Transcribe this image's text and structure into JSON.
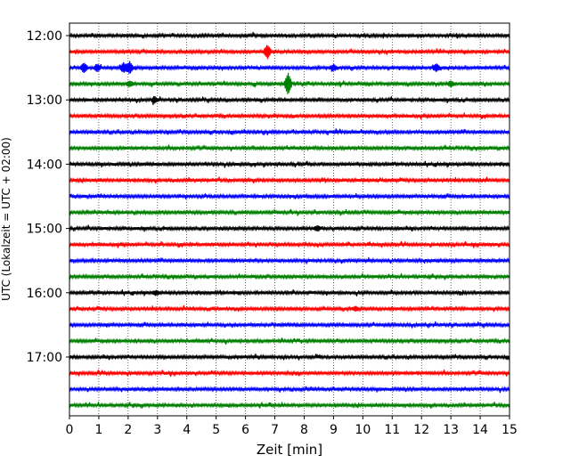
{
  "chart_data": {
    "type": "line",
    "title": "",
    "xlabel": "Zeit  [min]",
    "ylabel": "UTC (Lokalzeit = UTC + 02:00)",
    "xlim": [
      0,
      15
    ],
    "x_ticks": [
      "0",
      "1",
      "2",
      "3",
      "4",
      "5",
      "6",
      "7",
      "8",
      "9",
      "10",
      "11",
      "12",
      "13",
      "14",
      "15"
    ],
    "y_ticks": [
      "12:00",
      "13:00",
      "14:00",
      "15:00",
      "16:00",
      "17:00"
    ],
    "grid": "vertical dotted",
    "trace_colors": [
      "#000000",
      "#ff0000",
      "#0000ff",
      "#008000"
    ],
    "traces_start": "12:00",
    "trace_interval_min": 15,
    "trace_count": 24,
    "events": [
      {
        "trace": 1,
        "x": 6.75,
        "amp": 1.0
      },
      {
        "trace": 2,
        "x": 0.5,
        "amp": 0.7
      },
      {
        "trace": 2,
        "x": 0.95,
        "amp": 0.5
      },
      {
        "trace": 2,
        "x": 1.85,
        "amp": 0.7
      },
      {
        "trace": 2,
        "x": 2.05,
        "amp": 0.9
      },
      {
        "trace": 2,
        "x": 9.0,
        "amp": 0.4
      },
      {
        "trace": 2,
        "x": 12.5,
        "amp": 0.5
      },
      {
        "trace": 3,
        "x": 2.05,
        "amp": 0.4
      },
      {
        "trace": 3,
        "x": 7.45,
        "amp": 1.6
      },
      {
        "trace": 3,
        "x": 13.0,
        "amp": 0.4
      },
      {
        "trace": 4,
        "x": 2.9,
        "amp": 0.45
      },
      {
        "trace": 12,
        "x": 8.45,
        "amp": 0.35
      },
      {
        "trace": 16,
        "x": 2.95,
        "amp": 0.3
      },
      {
        "trace": 17,
        "x": 9.75,
        "amp": 0.3
      }
    ]
  }
}
